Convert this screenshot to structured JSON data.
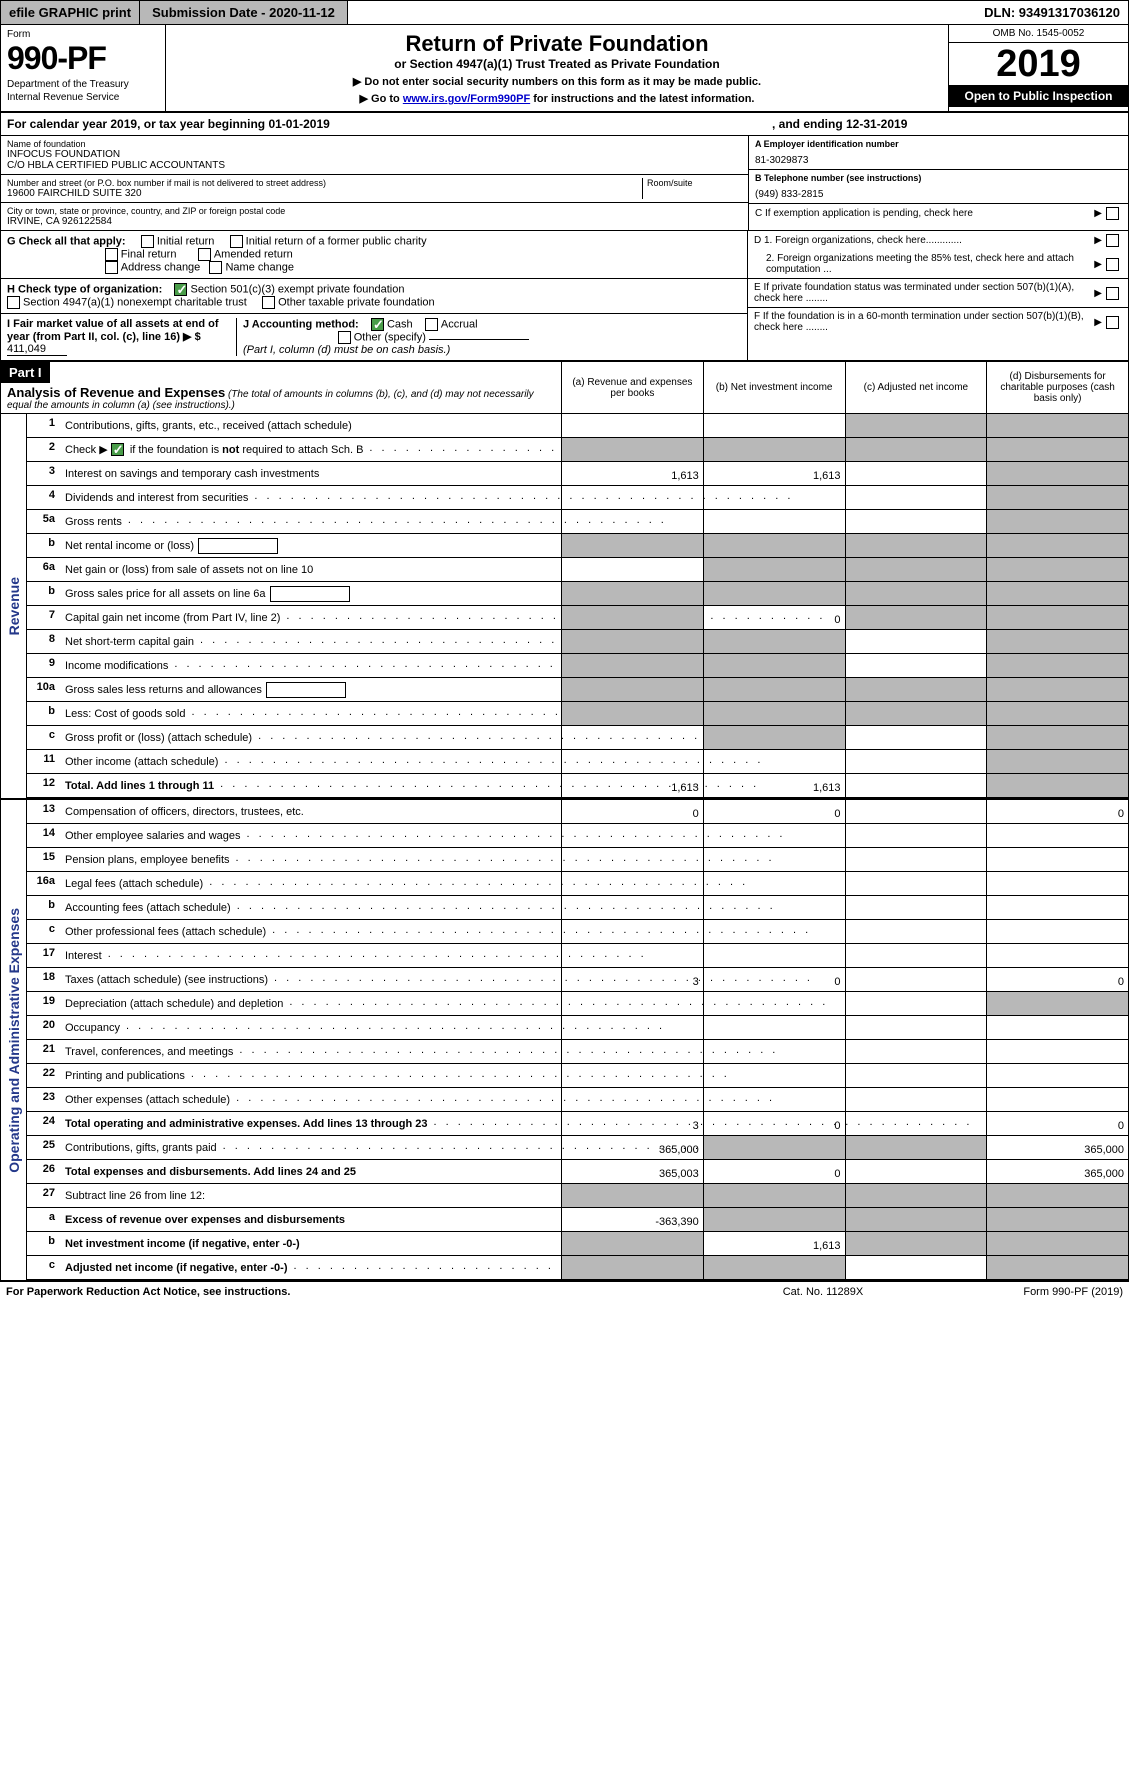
{
  "topbar": {
    "efile": "efile GRAPHIC print",
    "subdate_label": "Submission Date - 2020-11-12",
    "dln": "DLN: 93491317036120"
  },
  "header": {
    "form_label": "Form",
    "form_num": "990-PF",
    "dept1": "Department of the Treasury",
    "dept2": "Internal Revenue Service",
    "title": "Return of Private Foundation",
    "subtitle": "or Section 4947(a)(1) Trust Treated as Private Foundation",
    "note1": "▶ Do not enter social security numbers on this form as it may be made public.",
    "note2_pre": "▶ Go to ",
    "note2_link": "www.irs.gov/Form990PF",
    "note2_post": " for instructions and the latest information.",
    "omb": "OMB No. 1545-0052",
    "year": "2019",
    "open": "Open to Public Inspection"
  },
  "calyear": {
    "left": "For calendar year 2019, or tax year beginning 01-01-2019",
    "right": ", and ending 12-31-2019"
  },
  "entity": {
    "name_lbl": "Name of foundation",
    "name1": "INFOCUS FOUNDATION",
    "name2": "C/O HBLA CERTIFIED PUBLIC ACCOUNTANTS",
    "street_lbl": "Number and street (or P.O. box number if mail is not delivered to street address)",
    "room_lbl": "Room/suite",
    "street": "19600 FAIRCHILD SUITE 320",
    "city_lbl": "City or town, state or province, country, and ZIP or foreign postal code",
    "city": "IRVINE, CA  926122584",
    "a_lbl": "A Employer identification number",
    "a_val": "81-3029873",
    "b_lbl": "B Telephone number (see instructions)",
    "b_val": "(949) 833-2815",
    "c_lbl": "C If exemption application is pending, check here"
  },
  "checks": {
    "g_lbl": "G Check all that apply:",
    "g_initial": "Initial return",
    "g_initial_former": "Initial return of a former public charity",
    "g_final": "Final return",
    "g_amended": "Amended return",
    "g_address": "Address change",
    "g_name": "Name change",
    "h_lbl": "H Check type of organization:",
    "h_501c3": "Section 501(c)(3) exempt private foundation",
    "h_4947": "Section 4947(a)(1) nonexempt charitable trust",
    "h_other": "Other taxable private foundation",
    "i_lbl": "I Fair market value of all assets at end of year (from Part II, col. (c), line 16) ▶ $",
    "i_val": "411,049",
    "j_lbl": "J Accounting method:",
    "j_cash": "Cash",
    "j_accrual": "Accrual",
    "j_other": "Other (specify)",
    "j_note": "(Part I, column (d) must be on cash basis.)",
    "d1": "D 1. Foreign organizations, check here.............",
    "d2": "2. Foreign organizations meeting the 85% test, check here and attach computation ...",
    "e": "E  If private foundation status was terminated under section 507(b)(1)(A), check here ........",
    "f": "F  If the foundation is in a 60-month termination under section 507(b)(1)(B), check here ........"
  },
  "part1": {
    "label": "Part I",
    "title": "Analysis of Revenue and Expenses",
    "title_note": " (The total of amounts in columns (b), (c), and (d) may not necessarily equal the amounts in column (a) (see instructions).)",
    "col_a": "(a)   Revenue and expenses per books",
    "col_b": "(b)   Net investment income",
    "col_c": "(c)   Adjusted net income",
    "col_d": "(d)   Disbursements for charitable purposes (cash basis only)",
    "vlabel_rev": "Revenue",
    "vlabel_exp": "Operating and Administrative Expenses"
  },
  "rows_rev": [
    {
      "n": "1",
      "d": "Contributions, gifts, grants, etc., received (attach schedule)",
      "a": "",
      "b": "",
      "c": "g",
      "dcol": "g"
    },
    {
      "n": "2",
      "d": "Check ▶ ☑ if the foundation is not required to attach Sch. B",
      "dots": true,
      "a": "g",
      "b": "g",
      "c": "g",
      "dcol": "g",
      "checked": true
    },
    {
      "n": "3",
      "d": "Interest on savings and temporary cash investments",
      "a": "1,613",
      "b": "1,613",
      "c": "",
      "dcol": "g"
    },
    {
      "n": "4",
      "d": "Dividends and interest from securities",
      "dots": true,
      "a": "",
      "b": "",
      "c": "",
      "dcol": "g"
    },
    {
      "n": "5a",
      "d": "Gross rents",
      "dots": true,
      "a": "",
      "b": "",
      "c": "",
      "dcol": "g"
    },
    {
      "n": "b",
      "d": "Net rental income or (loss)",
      "box": true,
      "a": "g",
      "b": "g",
      "c": "g",
      "dcol": "g"
    },
    {
      "n": "6a",
      "d": "Net gain or (loss) from sale of assets not on line 10",
      "a": "",
      "b": "g",
      "c": "g",
      "dcol": "g"
    },
    {
      "n": "b",
      "d": "Gross sales price for all assets on line 6a",
      "box": true,
      "a": "g",
      "b": "g",
      "c": "g",
      "dcol": "g"
    },
    {
      "n": "7",
      "d": "Capital gain net income (from Part IV, line 2)",
      "dots": true,
      "a": "g",
      "b": "0",
      "c": "g",
      "dcol": "g"
    },
    {
      "n": "8",
      "d": "Net short-term capital gain",
      "dots": true,
      "a": "g",
      "b": "g",
      "c": "",
      "dcol": "g"
    },
    {
      "n": "9",
      "d": "Income modifications",
      "dots": true,
      "a": "g",
      "b": "g",
      "c": "",
      "dcol": "g"
    },
    {
      "n": "10a",
      "d": "Gross sales less returns and allowances",
      "box": true,
      "a": "g",
      "b": "g",
      "c": "g",
      "dcol": "g"
    },
    {
      "n": "b",
      "d": "Less: Cost of goods sold",
      "dots": true,
      "box": true,
      "a": "g",
      "b": "g",
      "c": "g",
      "dcol": "g"
    },
    {
      "n": "c",
      "d": "Gross profit or (loss) (attach schedule)",
      "dots": true,
      "a": "",
      "b": "g",
      "c": "",
      "dcol": "g"
    },
    {
      "n": "11",
      "d": "Other income (attach schedule)",
      "dots": true,
      "a": "",
      "b": "",
      "c": "",
      "dcol": "g"
    },
    {
      "n": "12",
      "d": "Total. Add lines 1 through 11",
      "dots": true,
      "bold": true,
      "a": "1,613",
      "b": "1,613",
      "c": "",
      "dcol": "g"
    }
  ],
  "rows_exp": [
    {
      "n": "13",
      "d": "Compensation of officers, directors, trustees, etc.",
      "a": "0",
      "b": "0",
      "c": "",
      "dcol": "0"
    },
    {
      "n": "14",
      "d": "Other employee salaries and wages",
      "dots": true,
      "a": "",
      "b": "",
      "c": "",
      "dcol": ""
    },
    {
      "n": "15",
      "d": "Pension plans, employee benefits",
      "dots": true,
      "a": "",
      "b": "",
      "c": "",
      "dcol": ""
    },
    {
      "n": "16a",
      "d": "Legal fees (attach schedule)",
      "dots": true,
      "a": "",
      "b": "",
      "c": "",
      "dcol": ""
    },
    {
      "n": "b",
      "d": "Accounting fees (attach schedule)",
      "dots": true,
      "a": "",
      "b": "",
      "c": "",
      "dcol": ""
    },
    {
      "n": "c",
      "d": "Other professional fees (attach schedule)",
      "dots": true,
      "a": "",
      "b": "",
      "c": "",
      "dcol": ""
    },
    {
      "n": "17",
      "d": "Interest",
      "dots": true,
      "a": "",
      "b": "",
      "c": "",
      "dcol": ""
    },
    {
      "n": "18",
      "d": "Taxes (attach schedule) (see instructions)",
      "dots": true,
      "a": "3",
      "b": "0",
      "c": "",
      "dcol": "0"
    },
    {
      "n": "19",
      "d": "Depreciation (attach schedule) and depletion",
      "dots": true,
      "a": "",
      "b": "",
      "c": "",
      "dcol": "g"
    },
    {
      "n": "20",
      "d": "Occupancy",
      "dots": true,
      "a": "",
      "b": "",
      "c": "",
      "dcol": ""
    },
    {
      "n": "21",
      "d": "Travel, conferences, and meetings",
      "dots": true,
      "a": "",
      "b": "",
      "c": "",
      "dcol": ""
    },
    {
      "n": "22",
      "d": "Printing and publications",
      "dots": true,
      "a": "",
      "b": "",
      "c": "",
      "dcol": ""
    },
    {
      "n": "23",
      "d": "Other expenses (attach schedule)",
      "dots": true,
      "a": "",
      "b": "",
      "c": "",
      "dcol": ""
    },
    {
      "n": "24",
      "d": "Total operating and administrative expenses. Add lines 13 through 23",
      "dots": true,
      "bold": true,
      "a": "3",
      "b": "0",
      "c": "",
      "dcol": "0"
    },
    {
      "n": "25",
      "d": "Contributions, gifts, grants paid",
      "dots": true,
      "a": "365,000",
      "b": "g",
      "c": "g",
      "dcol": "365,000"
    },
    {
      "n": "26",
      "d": "Total expenses and disbursements. Add lines 24 and 25",
      "bold": true,
      "a": "365,003",
      "b": "0",
      "c": "",
      "dcol": "365,000"
    },
    {
      "n": "27",
      "d": "Subtract line 26 from line 12:",
      "a": "g",
      "b": "g",
      "c": "g",
      "dcol": "g"
    },
    {
      "n": "a",
      "d": "Excess of revenue over expenses and disbursements",
      "bold": true,
      "a": "-363,390",
      "b": "g",
      "c": "g",
      "dcol": "g"
    },
    {
      "n": "b",
      "d": "Net investment income (if negative, enter -0-)",
      "bold": true,
      "a": "g",
      "b": "1,613",
      "c": "g",
      "dcol": "g"
    },
    {
      "n": "c",
      "d": "Adjusted net income (if negative, enter -0-)",
      "dots": true,
      "bold": true,
      "a": "g",
      "b": "g",
      "c": "",
      "dcol": "g"
    }
  ],
  "footer": {
    "left": "For Paperwork Reduction Act Notice, see instructions.",
    "mid": "Cat. No. 11289X",
    "right": "Form 990-PF (2019)"
  },
  "colors": {
    "grey": "#b8b8b8",
    "green": "#4a9d4a",
    "blue_text": "#24388a",
    "link": "#0000cc"
  }
}
